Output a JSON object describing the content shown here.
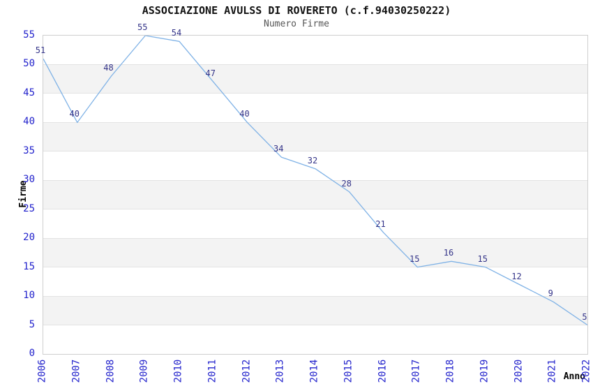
{
  "header": {
    "title": "ASSOCIAZIONE AVULSS DI ROVERETO (c.f.94030250222)",
    "subtitle": "Numero Firme"
  },
  "chart_data": {
    "type": "line",
    "title": "ASSOCIAZIONE AVULSS DI ROVERETO (c.f.94030250222)",
    "subtitle": "Numero Firme",
    "xlabel": "Anno",
    "ylabel": "Firme",
    "x": [
      "2006",
      "2007",
      "2008",
      "2009",
      "2010",
      "2011",
      "2012",
      "2013",
      "2014",
      "2015",
      "2016",
      "2017",
      "2018",
      "2019",
      "2020",
      "2021",
      "2022"
    ],
    "values": [
      51,
      40,
      48,
      55,
      54,
      47,
      40,
      34,
      32,
      28,
      21,
      15,
      16,
      15,
      12,
      9,
      5
    ],
    "point_labels": [
      "51",
      "40",
      "48",
      "55",
      "54",
      "47",
      "40",
      "34",
      "32",
      "28",
      "21",
      "15",
      "16",
      "15",
      "12",
      "9",
      "5"
    ],
    "ylim": [
      0,
      55
    ],
    "ytick_step": 5,
    "ytick_labels": [
      "0",
      "5",
      "10",
      "15",
      "20",
      "25",
      "30",
      "35",
      "40",
      "45",
      "50",
      "55"
    ],
    "grid": "horizontal gridlines every 5 units with alternating shaded bands",
    "legend": "none",
    "colors": {
      "line": "#7fb2e6",
      "tick_label": "#2222cc",
      "point_label": "#333388",
      "band_fill": "#f3f3f3",
      "gridline": "#e3e3e3",
      "plot_border": "#cfcfcf",
      "title": "#111111",
      "subtitle": "#555555",
      "axis_name": "#000000",
      "background": "#ffffff"
    }
  }
}
